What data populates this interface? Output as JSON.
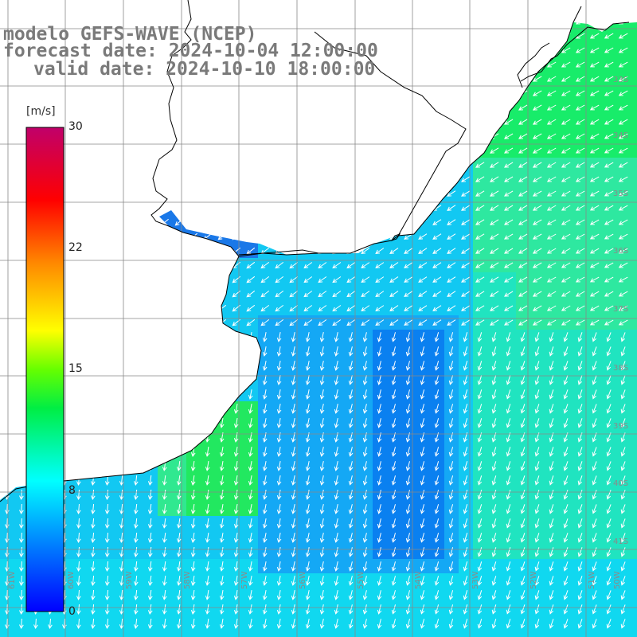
{
  "header": {
    "line1": "modelo GEFS-WAVE (NCEP)",
    "line2": "forecast date: 2024-10-04 12:00:00",
    "line3": "valid date: 2024-10-10 18:00:00"
  },
  "colorbar": {
    "unit": "[m/s]",
    "ticks": [
      "30",
      "22",
      "15",
      "8",
      "0"
    ],
    "colors": [
      "#c0006a",
      "#ff0000",
      "#ff8c00",
      "#ffff00",
      "#00dd00",
      "#00ffff",
      "#00a0ff",
      "#0000ff"
    ]
  },
  "axes": {
    "lon_labels": [
      "61W",
      "60W",
      "59W",
      "58W",
      "57W",
      "56W",
      "55W",
      "54W",
      "53W",
      "52W",
      "51W",
      "50W"
    ],
    "lat_labels": [
      "33S",
      "34S",
      "35S",
      "36S",
      "37S",
      "38S",
      "39S",
      "40S",
      "41S"
    ]
  },
  "map_style": {
    "land": "#ffffff",
    "grid": "#888888",
    "coast": "#000000",
    "arrow": "#ffffff"
  }
}
